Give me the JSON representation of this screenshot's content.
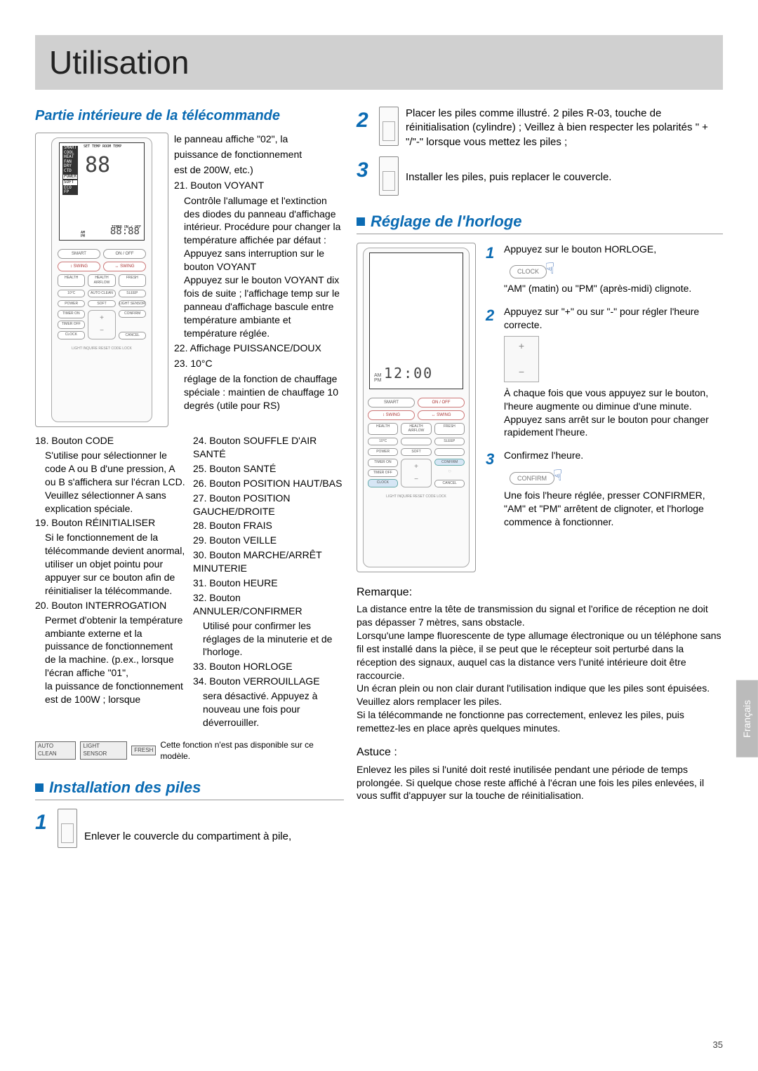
{
  "page_title": "Utilisation",
  "page_number": "35",
  "side_tab": "Français",
  "colors": {
    "accent": "#0b6bb3",
    "title_bg": "#d0d0d0"
  },
  "sec1": {
    "heading": "Partie intérieure de la télécommande",
    "remote_lcd": {
      "labels": [
        "SMART",
        "COOL",
        "HEAT",
        "FAN",
        "DRY",
        "CTD",
        "POWER",
        "SOFT",
        "ECO",
        "FP"
      ],
      "bottom": "TIMER ON / OFF",
      "digits": "88:88",
      "ampm_am": "AM",
      "ampm_pm": "PM",
      "settemp": "SET TEMP",
      "roomtemp": "ROOM TEMP"
    },
    "remote_buttons": {
      "r1a": "SMART",
      "r1b": "ON / OFF",
      "r2a": "↕ SWING",
      "r2b": "↔ SWING",
      "r3a": "HEALTH",
      "r3b": "HEALTH AIRFLOW",
      "r3c": "FRESH",
      "r4a": "10°C",
      "r4b": "AUTO CLEAN",
      "r4c": "SLEEP",
      "r5a": "POWER",
      "r5b": "SOFT",
      "r5c": "LIGHT SENSOR",
      "r6a": "TIMER ON",
      "r6c": "CONFIRM",
      "r7a": "TIMER OFF",
      "r8a": "CLOCK",
      "r8c": "CANCEL",
      "mid_plus": "+",
      "mid_minus": "−",
      "bottom": "LIGHT  INQUIRE  RESET  CODE  LOCK"
    },
    "rhs_intro_lines": [
      "le panneau affiche \"02\", la",
      "puissance de fonctionnement",
      "est de 200W, etc.)"
    ],
    "items": [
      {
        "n": "21.",
        "title": "Bouton VOYANT",
        "body": "Contrôle l'allumage et l'extinction des diodes du panneau d'affichage intérieur. Procédure pour changer la température affichée par défaut :\nAppuyez sans interruption sur le bouton VOYANT\nAppuyez sur le bouton VOYANT dix fois de suite ; l'affichage temp sur le panneau d'affichage bascule entre température ambiante et température réglée."
      },
      {
        "n": "22.",
        "title": "Affichage PUISSANCE/DOUX",
        "body": ""
      },
      {
        "n": "23.",
        "title": "10°C",
        "body": "réglage de la fonction de chauffage spéciale : maintien de chauffage 10 degrés (utile pour RS)"
      },
      {
        "n": "24.",
        "title": "Bouton SOUFFLE D'AIR SANTÉ",
        "body": ""
      },
      {
        "n": "25.",
        "title": "Bouton SANTÉ",
        "body": ""
      },
      {
        "n": "26.",
        "title": "Bouton POSITION HAUT/BAS",
        "body": ""
      },
      {
        "n": "27.",
        "title": "Bouton POSITION GAUCHE/DROITE",
        "body": ""
      },
      {
        "n": "28.",
        "title": "Bouton FRAIS",
        "body": ""
      },
      {
        "n": "29.",
        "title": "Bouton VEILLE",
        "body": ""
      },
      {
        "n": "30.",
        "title": "Bouton MARCHE/ARRÊT MINUTERIE",
        "body": ""
      },
      {
        "n": "31.",
        "title": "Bouton HEURE",
        "body": ""
      },
      {
        "n": "32.",
        "title": "Bouton ANNULER/CONFIRMER",
        "body": "Utilisé pour confirmer les réglages de la minuterie et de l'horloge."
      },
      {
        "n": "33.",
        "title": "Bouton HORLOGE",
        "body": ""
      },
      {
        "n": "34.",
        "title": "Bouton VERROUILLAGE",
        "body": "sera désactivé. Appuyez à nouveau une fois pour déverrouiller."
      }
    ],
    "defs_left": [
      {
        "n": "18.",
        "title": "Bouton CODE",
        "body": "S'utilise pour sélectionner le code A ou B d'une pression, A ou B s'affichera sur l'écran LCD. Veuillez sélectionner A sans explication spéciale."
      },
      {
        "n": "19.",
        "title": "Bouton RÉINITIALISER",
        "body": "Si le fonctionnement de la télécommande devient anormal, utiliser un objet pointu pour appuyer sur ce bouton afin de réinitialiser la télécommande."
      },
      {
        "n": "20.",
        "title": "Bouton INTERROGATION",
        "body": "Permet d'obtenir la température ambiante externe et la puissance de fonctionnement de la machine. (p.ex., lorsque l'écran affiche \"01\",\nla puissance de fonctionnement est de 100W ; lorsque"
      }
    ],
    "badges": [
      "AUTO CLEAN",
      "LIGHT SENSOR",
      "FRESH"
    ],
    "badges_note": "Cette fonction n'est pas disponible sur ce modèle."
  },
  "sec2": {
    "heading": "Installation des piles",
    "step1_text": "Enlever le couvercle du compartiment à pile,",
    "step2_text": "Placer les piles comme illustré. 2 piles R-03, touche de réinitialisation (cylindre) ; Veillez à bien respecter les polarités \" + \"/\"-\" lorsque vous mettez les piles ;",
    "step3_text": "Installer les piles, puis replacer le couvercle."
  },
  "sec3": {
    "heading": "Réglage de l'horloge",
    "remote": {
      "time": "12:00",
      "am": "AM",
      "pm": "PM",
      "r1a": "SMART",
      "r1b": "ON / OFF",
      "r2a": "↕ SWING",
      "r2b": "↔ SWING",
      "r3a": "HEALTH",
      "r3b": "HEALTH AIRFLOW",
      "r3c": "FRESH",
      "r4a": "10°C",
      "r4c": "SLEEP",
      "r5a": "POWER",
      "r5b": "SOFT",
      "r6a": "TIMER ON",
      "r6c": "CONFIRM",
      "r7a": "TIMER OFF",
      "r8a": "CLOCK",
      "r8c": "CANCEL",
      "bottom": "LIGHT  INQUIRE  RESET  CODE  LOCK"
    },
    "steps": [
      {
        "n": "1",
        "text": "Appuyez sur le bouton HORLOGE,",
        "btn": "CLOCK",
        "after": "\"AM\" (matin) ou \"PM\" (après-midi) clignote."
      },
      {
        "n": "2",
        "text": "Appuyez sur \"+\" ou sur \"-\" pour régler l'heure correcte.",
        "after": "À chaque fois que vous appuyez sur le bouton, l'heure augmente ou diminue d'une minute. Appuyez sans arrêt sur le bouton pour changer rapidement l'heure."
      },
      {
        "n": "3",
        "text": "Confirmez l'heure.",
        "btn": "CONFIRM",
        "after": "Une fois l'heure réglée, presser CONFIRMER, \"AM\" et \"PM\" arrêtent de clignoter, et l'horloge commence à fonctionner."
      }
    ],
    "remark_heading": "Remarque:",
    "remark_text": "La distance entre la tête de transmission du signal et l'orifice de réception ne doit pas dépasser 7 mètres, sans obstacle.\nLorsqu'une lampe fluorescente de type allumage électronique ou un téléphone sans fil est installé dans la pièce, il se peut que le récepteur soit perturbé dans la réception des signaux, auquel cas la distance vers l'unité intérieure doit être raccourcie.\nUn écran plein ou non clair durant l'utilisation indique que les piles sont épuisées. Veuillez alors remplacer les piles.\nSi la télécommande ne fonctionne pas correctement, enlevez les piles, puis remettez-les en place après quelques minutes.",
    "tip_heading": "Astuce :",
    "tip_text": "Enlevez les piles si l'unité doit resté inutilisée pendant une période de temps prolongée. Si quelque chose reste affiché à l'écran une fois les piles enlevées, il vous suffit d'appuyer sur la touche de réinitialisation."
  }
}
